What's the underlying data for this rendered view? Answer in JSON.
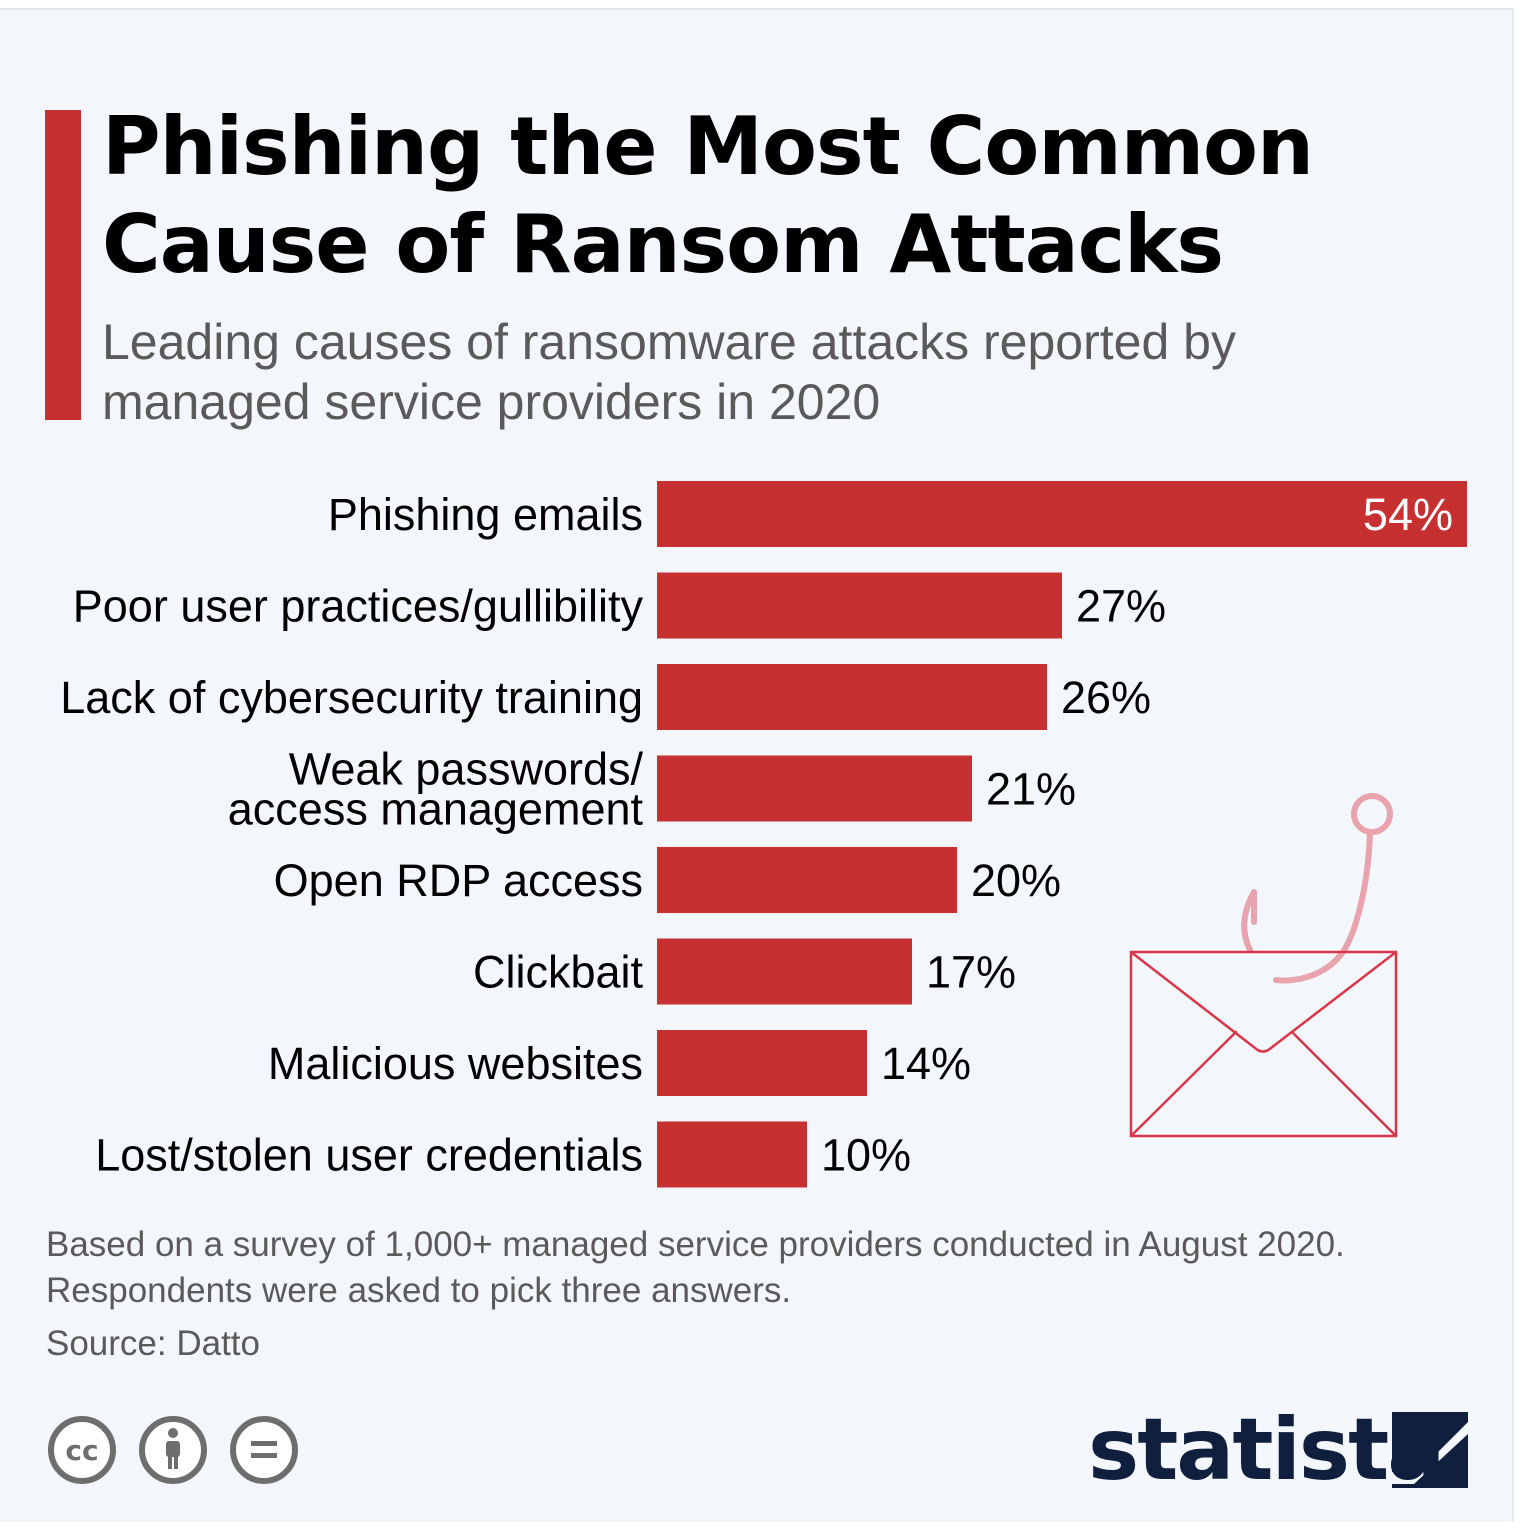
{
  "title": "Phishing the Most Common Cause of Ransom Attacks",
  "subtitle": "Leading causes of ransomware attacks reported by managed service providers in 2020",
  "footnote": "Based on a survey of 1,000+ managed service providers conducted in August 2020. Respondents were asked to pick three answers.",
  "source": "Source: Datto",
  "logo_text": "statista",
  "license_icons": [
    "cc-icon",
    "attribution-icon",
    "no-derivatives-icon"
  ],
  "colors": {
    "bar": "#c63031",
    "accent": "#c63031",
    "background": "#f3f6fa",
    "illustration": "#d9364a",
    "logo": "#0f1f3d"
  },
  "illustration": "envelope-with-fishhook-icon",
  "chart_data": {
    "type": "bar",
    "orientation": "horizontal",
    "categories": [
      [
        "Phishing emails"
      ],
      [
        "Poor user practices/gullibility"
      ],
      [
        "Lack of cybersecurity training"
      ],
      [
        "Weak passwords/",
        "access management"
      ],
      [
        "Open RDP access"
      ],
      [
        "Clickbait"
      ],
      [
        "Malicious websites"
      ],
      [
        "Lost/stolen user credentials"
      ]
    ],
    "values": [
      54,
      27,
      26,
      21,
      20,
      17,
      14,
      10
    ],
    "value_labels": [
      "54%",
      "27%",
      "26%",
      "21%",
      "20%",
      "17%",
      "14%",
      "10%"
    ],
    "xlim": [
      0,
      54
    ],
    "unit": "%",
    "grid": false,
    "legend": "none"
  }
}
